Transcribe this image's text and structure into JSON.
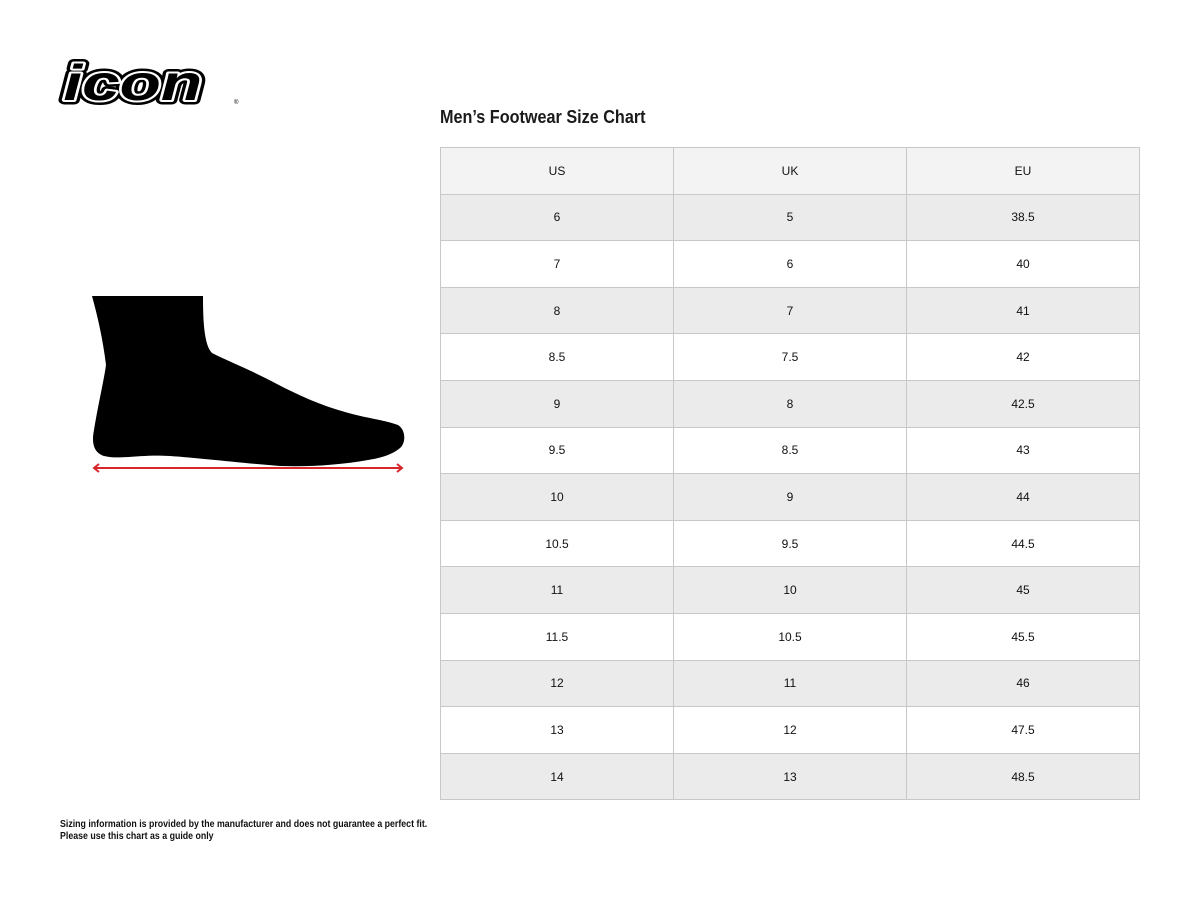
{
  "brand": {
    "logo_text": "icon"
  },
  "title": "Men’s Footwear Size Chart",
  "table": {
    "headers": [
      "US",
      "UK",
      "EU"
    ],
    "rows": [
      [
        "6",
        "5",
        "38.5"
      ],
      [
        "7",
        "6",
        "40"
      ],
      [
        "8",
        "7",
        "41"
      ],
      [
        "8.5",
        "7.5",
        "42"
      ],
      [
        "9",
        "8",
        "42.5"
      ],
      [
        "9.5",
        "8.5",
        "43"
      ],
      [
        "10",
        "9",
        "44"
      ],
      [
        "10.5",
        "9.5",
        "44.5"
      ],
      [
        "11",
        "10",
        "45"
      ],
      [
        "11.5",
        "10.5",
        "45.5"
      ],
      [
        "12",
        "11",
        "46"
      ],
      [
        "13",
        "12",
        "47.5"
      ],
      [
        "14",
        "13",
        "48.5"
      ]
    ]
  },
  "illustration": {
    "icon": "foot-silhouette-icon",
    "measure_color": "#d9262b"
  },
  "disclaimer": {
    "line1": "Sizing information is provided by the manufacturer and does not guarantee a perfect fit.",
    "line2": "Please use this chart as a guide only"
  }
}
